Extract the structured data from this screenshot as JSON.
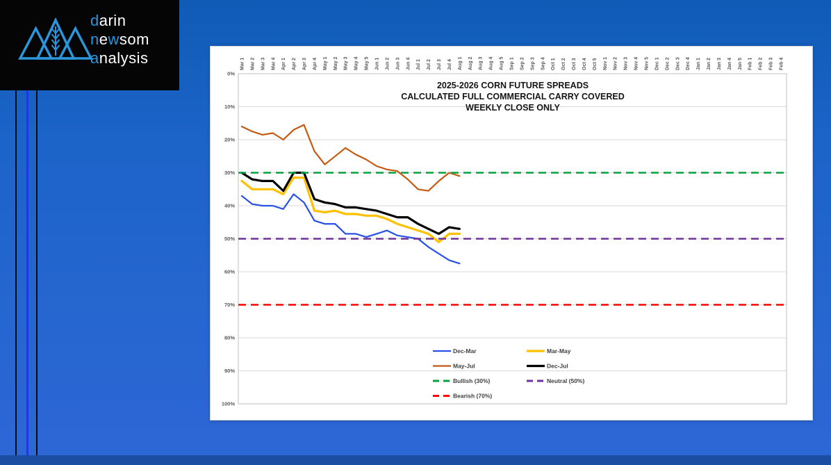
{
  "logo": {
    "mark_icon": "mountain-triangles-wheat-icon",
    "accent_color": "#2B96DC",
    "text_color": "#FFFFFF",
    "lines": [
      [
        [
          "d",
          true
        ],
        [
          "arin",
          false
        ]
      ],
      [
        [
          "n",
          true
        ],
        [
          "e",
          false
        ],
        [
          "w",
          true
        ],
        [
          "som",
          false
        ]
      ],
      [
        [
          "a",
          true
        ],
        [
          "nalysis",
          false
        ]
      ]
    ]
  },
  "chart_data": {
    "type": "line",
    "title_lines": [
      "2025-2026 CORN FUTURE SPREADS",
      "CALCULATED FULL COMMERCIAL CARRY COVERED",
      "WEEKLY CLOSE ONLY"
    ],
    "y_axis": {
      "unit": "%",
      "min": 0,
      "max": 100,
      "inverted": true,
      "grid": true
    },
    "y_tick_labels": [
      "0%",
      "10%",
      "20%",
      "30%",
      "40%",
      "50%",
      "60%",
      "70%",
      "80%",
      "90%",
      "100%"
    ],
    "x_labels": [
      "Mar 1",
      "Mar 2",
      "Mar 3",
      "Mar 4",
      "Apr 1",
      "Apr 2",
      "Apr 3",
      "Apr 4",
      "May 1",
      "May 2",
      "May 3",
      "May 4",
      "May 5",
      "Jun 1",
      "Jun 2",
      "Jun 3",
      "Jun 4",
      "Jul 1",
      "Jul 2",
      "Jul 3",
      "Jul 4",
      "Aug 1",
      "Aug 2",
      "Aug 3",
      "Aug 4",
      "Aug 5",
      "Sep 1",
      "Sep 2",
      "Sep 3",
      "Sep 4",
      "Oct 1",
      "Oct 2",
      "Oct 3",
      "Oct 4",
      "Oct 5",
      "Nov 1",
      "Nov 2",
      "Nov 3",
      "Nov 4",
      "Nov 5",
      "Dec 1",
      "Dec 2",
      "Dec 3",
      "Dec 4",
      "Jan 1",
      "Jan 2",
      "Jan 3",
      "Jan 4",
      "Jan 5",
      "Feb 1",
      "Feb 2",
      "Feb 3",
      "Feb 4"
    ],
    "series": [
      {
        "name": "Dec-Mar",
        "color": "#2850E8",
        "width": 2.2,
        "values": [
          37,
          39.5,
          40,
          40,
          41,
          36.5,
          39,
          44.5,
          45.5,
          45.5,
          48.5,
          48.5,
          49.5,
          48.5,
          47.5,
          49,
          49.5,
          50,
          52.5,
          54.5,
          56.5,
          57.5
        ]
      },
      {
        "name": "Mar-May",
        "color": "#FFC000",
        "width": 3.2,
        "values": [
          32.5,
          35,
          35,
          35,
          36.5,
          31.5,
          31.5,
          41.5,
          42,
          41.5,
          42.5,
          42.5,
          43,
          43,
          44,
          45.5,
          46.5,
          47.5,
          48.5,
          51,
          48.5,
          48.5
        ]
      },
      {
        "name": "May-Jul",
        "color": "#C45A11",
        "width": 2.2,
        "values": [
          16,
          17.5,
          18.5,
          18,
          20,
          17,
          15.5,
          23.5,
          27.5,
          25,
          22.5,
          24.5,
          26,
          28,
          29,
          29.5,
          32,
          35,
          35.5,
          32.5,
          30,
          31
        ]
      },
      {
        "name": "Dec-Jul",
        "color": "#000000",
        "width": 3.2,
        "values": [
          30,
          32,
          32.5,
          32.5,
          35.5,
          30,
          30,
          38,
          39,
          39.5,
          40.5,
          40.5,
          41,
          41.5,
          42.5,
          43.5,
          43.5,
          45.5,
          47,
          48.5,
          46.5,
          47
        ]
      }
    ],
    "reference_lines": [
      {
        "name": "Bullish (30%)",
        "value": 30,
        "color": "#00A33C",
        "style": "dashed"
      },
      {
        "name": "Neutral (50%)",
        "value": 50,
        "color": "#7030A0",
        "style": "dashed"
      },
      {
        "name": "Bearish (70%)",
        "value": 70,
        "color": "#FF0000",
        "style": "dashed"
      }
    ],
    "legend": {
      "position": "bottom-center",
      "columns": 2,
      "entries": [
        "Dec-Mar",
        "Mar-May",
        "May-Jul",
        "Dec-Jul",
        "Bullish (30%)",
        "Neutral (50%)",
        "Bearish (70%)"
      ]
    }
  }
}
